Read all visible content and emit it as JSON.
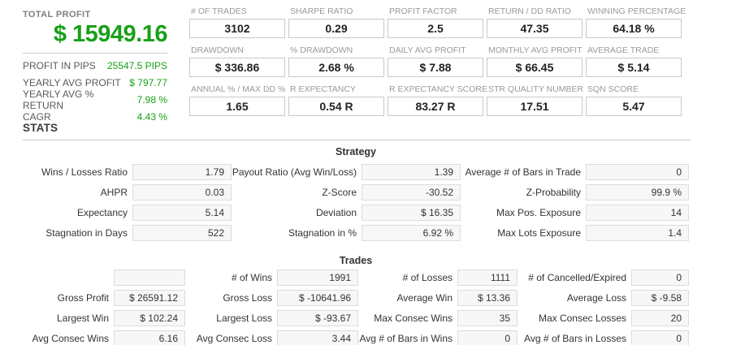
{
  "colors": {
    "green": "#18a018",
    "label_gray": "#9a9a9a",
    "box_border": "#c9c9c9",
    "stat_box_bg": "#f7f7f7"
  },
  "summary": {
    "title": "TOTAL PROFIT",
    "total": "$ 15949.16",
    "rows": [
      {
        "label": "PROFIT IN PIPS",
        "value": "25547.5 PIPS"
      },
      {
        "label": "YEARLY AVG PROFIT",
        "value": "$ 797.77"
      },
      {
        "label": "YEARLY AVG % RETURN",
        "value": "7.98 %"
      },
      {
        "label": "CAGR",
        "value": "4.43 %"
      }
    ]
  },
  "metrics": [
    {
      "label": "# OF TRADES",
      "value": "3102"
    },
    {
      "label": "SHARPE RATIO",
      "value": "0.29"
    },
    {
      "label": "PROFIT FACTOR",
      "value": "2.5"
    },
    {
      "label": "RETURN / DD RATIO",
      "value": "47.35"
    },
    {
      "label": "WINNING PERCENTAGE",
      "value": "64.18 %"
    },
    {
      "label": "DRAWDOWN",
      "value": "$ 336.86"
    },
    {
      "label": "% DRAWDOWN",
      "value": "2.68 %"
    },
    {
      "label": "DAILY AVG PROFIT",
      "value": "$ 7.88"
    },
    {
      "label": "MONTHLY AVG PROFIT",
      "value": "$ 66.45"
    },
    {
      "label": "AVERAGE TRADE",
      "value": "$ 5.14"
    },
    {
      "label": "ANNUAL % / MAX DD %",
      "value": "1.65"
    },
    {
      "label": "R EXPECTANCY",
      "value": "0.54 R"
    },
    {
      "label": "R EXPECTANCY SCORE",
      "value": "83.27 R"
    },
    {
      "label": "STR QUALITY NUMBER",
      "value": "17.51"
    },
    {
      "label": "SQN SCORE",
      "value": "5.47"
    }
  ],
  "stats": {
    "heading": "STATS",
    "sections": [
      {
        "title": "Strategy",
        "rows": [
          [
            {
              "label": "Wins / Losses Ratio",
              "value": "1.79"
            },
            {
              "label": "Payout Ratio (Avg Win/Loss)",
              "value": "1.39"
            },
            {
              "label": "Average # of Bars in Trade",
              "value": "0"
            }
          ],
          [
            {
              "label": "AHPR",
              "value": "0.03"
            },
            {
              "label": "Z-Score",
              "value": "-30.52"
            },
            {
              "label": "Z-Probability",
              "value": "99.9 %"
            }
          ],
          [
            {
              "label": "Expectancy",
              "value": "5.14"
            },
            {
              "label": "Deviation",
              "value": "$ 16.35"
            },
            {
              "label": "Max Pos. Exposure",
              "value": "14"
            }
          ],
          [
            {
              "label": "Stagnation in Days",
              "value": "522"
            },
            {
              "label": "Stagnation in %",
              "value": "6.92 %"
            },
            {
              "label": "Max Lots Exposure",
              "value": "1.4"
            }
          ]
        ]
      },
      {
        "title": "Trades",
        "rows": [
          [
            {
              "label": "",
              "value": ""
            },
            {
              "label": "# of Wins",
              "value": "1991"
            },
            {
              "label": "# of Losses",
              "value": "1111"
            },
            {
              "label": "# of Cancelled/Expired",
              "value": "0"
            }
          ],
          [
            {
              "label": "Gross Profit",
              "value": "$ 26591.12"
            },
            {
              "label": "Gross Loss",
              "value": "$ -10641.96"
            },
            {
              "label": "Average Win",
              "value": "$ 13.36"
            },
            {
              "label": "Average Loss",
              "value": "$ -9.58"
            }
          ],
          [
            {
              "label": "Largest Win",
              "value": "$ 102.24"
            },
            {
              "label": "Largest Loss",
              "value": "$ -93.67"
            },
            {
              "label": "Max Consec Wins",
              "value": "35"
            },
            {
              "label": "Max Consec Losses",
              "value": "20"
            }
          ],
          [
            {
              "label": "Avg Consec Wins",
              "value": "6.16"
            },
            {
              "label": "Avg Consec Loss",
              "value": "3.44"
            },
            {
              "label": "Avg # of Bars in Wins",
              "value": "0"
            },
            {
              "label": "Avg # of Bars in Losses",
              "value": "0"
            }
          ]
        ]
      }
    ]
  }
}
